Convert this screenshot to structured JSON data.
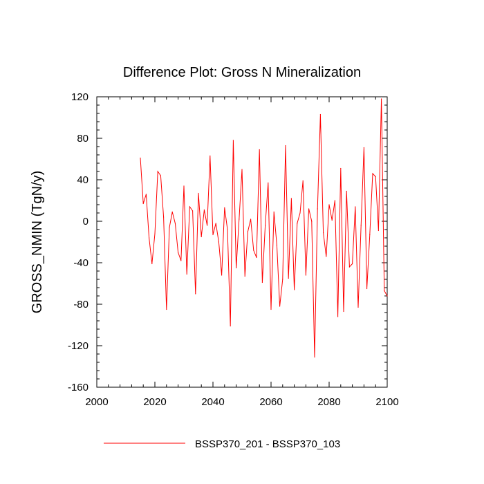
{
  "chart_data": {
    "type": "line",
    "title": "Difference Plot: Gross N Mineralization",
    "xlabel": "",
    "ylabel": "GROSS_NMIN  (TgN/y)",
    "xlim": [
      2000,
      2100
    ],
    "ylim": [
      -160,
      120
    ],
    "x_ticks": [
      2000,
      2020,
      2040,
      2060,
      2080,
      2100
    ],
    "y_ticks": [
      -160,
      -120,
      -80,
      -40,
      0,
      40,
      80,
      120
    ],
    "grid": false,
    "legend_position": "bottom",
    "series": [
      {
        "name": "BSSP370_201 - BSSP370_103",
        "color": "#ff0000",
        "x": [
          2015,
          2016,
          2017,
          2018,
          2019,
          2020,
          2021,
          2022,
          2023,
          2024,
          2025,
          2026,
          2027,
          2028,
          2029,
          2030,
          2031,
          2032,
          2033,
          2034,
          2035,
          2036,
          2037,
          2038,
          2039,
          2040,
          2041,
          2042,
          2043,
          2044,
          2045,
          2046,
          2047,
          2048,
          2049,
          2050,
          2051,
          2052,
          2053,
          2054,
          2055,
          2056,
          2057,
          2058,
          2059,
          2060,
          2061,
          2062,
          2063,
          2064,
          2065,
          2066,
          2067,
          2068,
          2069,
          2070,
          2071,
          2072,
          2073,
          2074,
          2075,
          2076,
          2077,
          2078,
          2079,
          2080,
          2081,
          2082,
          2083,
          2084,
          2085,
          2086,
          2087,
          2088,
          2089,
          2090,
          2091,
          2092,
          2093,
          2094,
          2095,
          2096,
          2097,
          2098,
          2099,
          2100
        ],
        "values": [
          61,
          17,
          26,
          -16,
          -41,
          -12,
          48,
          44,
          4,
          -85,
          -6,
          9,
          -2,
          -30,
          -38,
          34,
          -51,
          14,
          10,
          -70,
          27,
          -15,
          11,
          -4,
          63,
          -13,
          -2,
          -20,
          -52,
          13,
          -8,
          -101,
          78,
          -45,
          2,
          50,
          -53,
          -10,
          2,
          -28,
          -35,
          69,
          -59,
          -4,
          37,
          -85,
          9,
          -23,
          -82,
          -56,
          73,
          -55,
          22,
          -66,
          -2,
          8,
          39,
          -52,
          12,
          0,
          -131,
          12,
          103,
          -11,
          -34,
          16,
          1,
          20,
          -92,
          51,
          -87,
          29,
          -44,
          -41,
          14,
          -83,
          -4,
          71,
          -65,
          -13,
          46,
          43,
          -9,
          118,
          -67,
          -72
        ]
      }
    ]
  }
}
